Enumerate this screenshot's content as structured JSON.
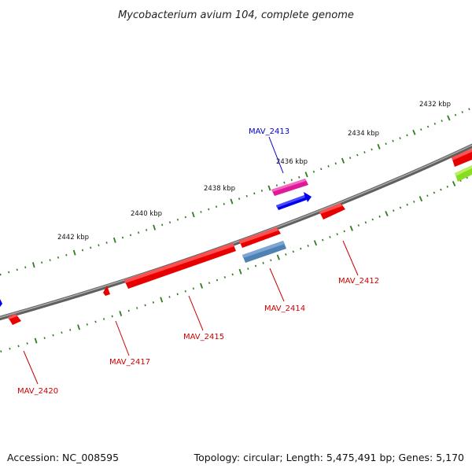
{
  "title": "Mycobacterium avium 104, complete genome",
  "footer": {
    "accession": "Accession: NC_008595",
    "summary": "Topology: circular; Length: 5,475,491 bp; Genes: 5,170"
  },
  "scale_labels": [
    "2432 kbp",
    "2434 kbp",
    "2436 kbp",
    "2438 kbp",
    "2440 kbp",
    "2442 kbp"
  ],
  "gene_labels": [
    {
      "id": "MAV_2413",
      "color": "#0000cc"
    },
    {
      "id": "MAV_2412",
      "color": "#cc0000"
    },
    {
      "id": "MAV_2414",
      "color": "#cc0000"
    },
    {
      "id": "MAV_2415",
      "color": "#cc0000"
    },
    {
      "id": "MAV_2417",
      "color": "#cc0000"
    },
    {
      "id": "MAV_2420",
      "color": "#cc0000"
    }
  ],
  "colors": {
    "backbone": "#7a7a7a",
    "tick": "#2e7d1e",
    "gene_red": "#e80000",
    "gene_blue": "#0000ee",
    "gene_pink": "#e0189a",
    "gene_steel": "#4f81b5",
    "gene_lime": "#88dd22"
  }
}
